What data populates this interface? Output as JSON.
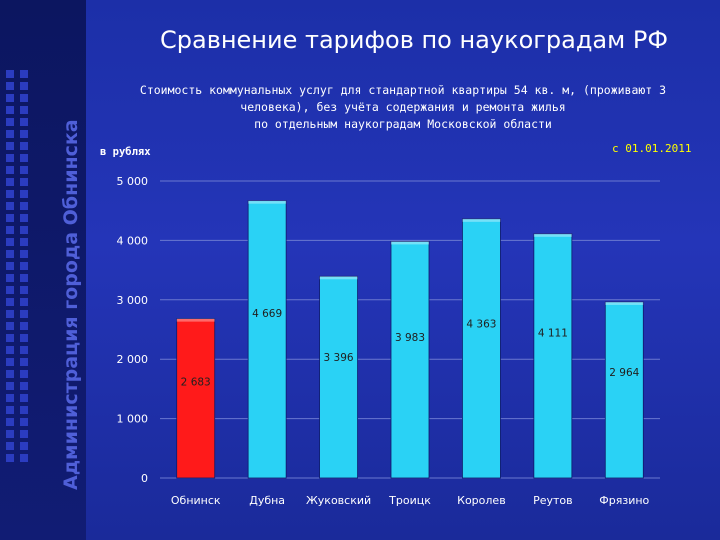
{
  "sidebar": {
    "vertical_title": "Администрация города Обнинска"
  },
  "header": {
    "title": "Сравнение тарифов по наукоградам РФ",
    "subtitle_lines": [
      "Стоимость коммунальных услуг для стандартной квартиры 54 кв. м,  (проживают 3",
      "человека), без учёта содержания и ремонта жилья",
      "по отдельным наукоградам Московской области"
    ],
    "unit_label": "в рублях",
    "date_label": "с 01.01.2011"
  },
  "chart_data": {
    "type": "bar",
    "categories": [
      "Обнинск",
      "Дубна",
      "Жуковский",
      "Троицк",
      "Королев",
      "Реутов",
      "Фрязино"
    ],
    "values": [
      2683,
      4669,
      3396,
      3983,
      4363,
      4111,
      2964
    ],
    "value_labels": [
      "2 683",
      "4 669",
      "3 396",
      "3 983",
      "4 363",
      "4 111",
      "2 964"
    ],
    "bar_colors": [
      "#ff1a1a",
      "#2ad2f5",
      "#2ad2f5",
      "#2ad2f5",
      "#2ad2f5",
      "#2ad2f5",
      "#2ad2f5"
    ],
    "ylim": [
      0,
      5000
    ],
    "yticks": [
      0,
      1000,
      2000,
      3000,
      4000,
      5000
    ],
    "ytick_labels": [
      "0",
      "1 000",
      "2 000",
      "3 000",
      "4 000",
      "5 000"
    ],
    "grid": true,
    "legend": false
  }
}
